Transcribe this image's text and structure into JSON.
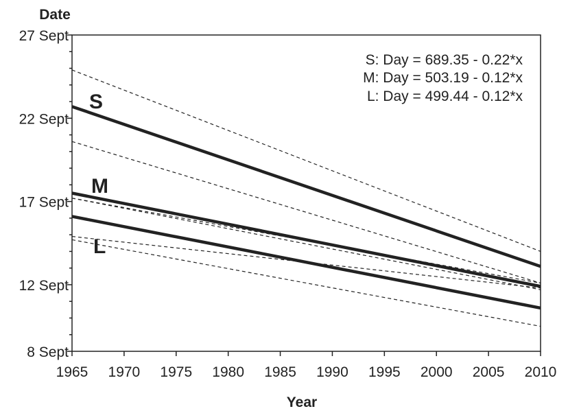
{
  "chart_data": {
    "type": "line",
    "xlabel": "Year",
    "ylabel": "Date",
    "xlim": [
      1965,
      2010
    ],
    "ylim": [
      8,
      27
    ],
    "x_ticks": [
      {
        "value": 1965,
        "label": "1965"
      },
      {
        "value": 1970,
        "label": "1970"
      },
      {
        "value": 1975,
        "label": "1975"
      },
      {
        "value": 1980,
        "label": "1980"
      },
      {
        "value": 1985,
        "label": "1985"
      },
      {
        "value": 1990,
        "label": "1990"
      },
      {
        "value": 1995,
        "label": "1995"
      },
      {
        "value": 2000,
        "label": "2000"
      },
      {
        "value": 2005,
        "label": "2005"
      },
      {
        "value": 2010,
        "label": "2010"
      }
    ],
    "y_ticks": [
      {
        "value": 8,
        "label": "8 Sept"
      },
      {
        "value": 12,
        "label": "12 Sept"
      },
      {
        "value": 17,
        "label": "17 Sept"
      },
      {
        "value": 22,
        "label": "22 Sept"
      },
      {
        "value": 27,
        "label": "27 Sept"
      }
    ],
    "series": [
      {
        "name": "S",
        "x": [
          1965,
          2010
        ],
        "y": [
          22.7,
          13.1
        ]
      },
      {
        "name": "M",
        "x": [
          1965,
          2010
        ],
        "y": [
          17.5,
          11.9
        ]
      },
      {
        "name": "L",
        "x": [
          1965,
          2010
        ],
        "y": [
          16.1,
          10.6
        ]
      }
    ],
    "confidence_bands": [
      {
        "series": "S",
        "upper": [
          [
            1965,
            24.9
          ],
          [
            2010,
            14.0
          ]
        ],
        "lower": [
          [
            1965,
            20.6
          ],
          [
            2010,
            12.1
          ]
        ]
      },
      {
        "series": "M",
        "upper": [
          [
            1965,
            17.2
          ],
          [
            2010,
            12.1
          ]
        ],
        "lower": [
          [
            1965,
            14.9
          ],
          [
            2010,
            11.8
          ]
        ]
      },
      {
        "series": "L",
        "upper": [
          [
            1965,
            17.2
          ],
          [
            2010,
            11.7
          ]
        ],
        "lower": [
          [
            1965,
            14.7
          ],
          [
            2010,
            9.5
          ]
        ]
      }
    ],
    "annotations": [
      "S: Day = 689.35 - 0.22*x",
      "M: Day = 503.19 - 0.12*x",
      "L: Day = 499.44 - 0.12*x"
    ],
    "grid": false,
    "legend": "none"
  }
}
